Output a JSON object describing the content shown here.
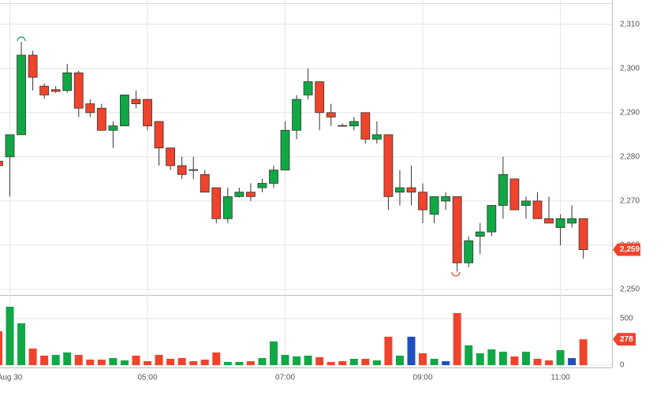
{
  "chart_data": [
    {
      "type": "candlestick",
      "x": [
        0,
        1,
        2,
        3,
        4,
        5,
        6,
        7,
        8,
        9,
        10,
        11,
        12,
        13,
        14,
        15,
        16,
        17,
        18,
        19,
        20,
        21,
        22,
        23,
        24,
        25,
        26,
        27,
        28,
        29,
        30,
        31,
        32,
        33,
        34,
        35,
        36,
        37,
        38,
        39,
        40,
        41,
        42,
        43,
        44,
        45,
        46,
        47,
        48,
        49,
        50,
        51
      ],
      "open": [
        2279,
        2280,
        2285,
        2303,
        2296,
        2295.2,
        2295,
        2299,
        2292,
        2291,
        2286,
        2287,
        2293,
        2293,
        2288,
        2282,
        2278,
        2277.1,
        2276,
        2273,
        2266,
        2271,
        2272,
        2273,
        2274,
        2277,
        2286,
        2294,
        2297,
        2290,
        2287.1,
        2287,
        2290,
        2284,
        2285,
        2272,
        2273,
        2272,
        2267,
        2270,
        2271,
        2256,
        2262,
        2263,
        2269,
        2275,
        2269,
        2270,
        2266,
        2264,
        2265,
        2266
      ],
      "high": [
        2279.2,
        2285,
        2306,
        2304,
        2296.6,
        2296,
        2301,
        2299.5,
        2293,
        2292,
        2288,
        2294,
        2295,
        2293,
        2288,
        2282,
        2280,
        2280,
        2277,
        2273,
        2273,
        2273,
        2274,
        2275,
        2278,
        2288,
        2294,
        2300,
        2297,
        2292,
        2287.5,
        2289,
        2290,
        2288,
        2285,
        2277,
        2278,
        2274,
        2271,
        2272,
        2271,
        2262,
        2265,
        2269,
        2280,
        2275,
        2271,
        2272,
        2271,
        2267,
        2269,
        2266
      ],
      "low": [
        2277.8,
        2271,
        2285,
        2295,
        2293.2,
        2294.5,
        2294.5,
        2289,
        2289,
        2286,
        2282,
        2287,
        2291,
        2286,
        2278,
        2277,
        2275,
        2275,
        2272,
        2265,
        2265,
        2270.8,
        2270,
        2272,
        2273,
        2277,
        2284,
        2293,
        2286,
        2287,
        2286.8,
        2286,
        2283,
        2283,
        2268,
        2269,
        2269,
        2265,
        2265,
        2268,
        2254,
        2255,
        2258,
        2262,
        2266,
        2268,
        2266,
        2266,
        2265,
        2260,
        2264,
        2257
      ],
      "close": [
        2278,
        2285,
        2303,
        2298,
        2294,
        2294.8,
        2299,
        2291,
        2290,
        2286,
        2287,
        2294,
        2292,
        2287,
        2282,
        2278,
        2276,
        2277,
        2272,
        2266,
        2271,
        2272,
        2271,
        2274,
        2277,
        2286,
        2293,
        2297,
        2290,
        2289,
        2287,
        2288,
        2284,
        2285,
        2271,
        2273,
        2272,
        2268,
        2271,
        2271,
        2256,
        2261,
        2263,
        2269,
        2276,
        2268,
        2270,
        2266,
        2265,
        2266,
        2266,
        2259
      ],
      "up_color": "#10a844",
      "down_color": "#f0432c",
      "close_label": "2,259",
      "xlim": [
        0.14,
        53.5
      ],
      "ylim": [
        2249.1,
        2314.6
      ],
      "yticks": [
        {
          "value": 2250,
          "label": "2,250"
        },
        {
          "value": 2260,
          "label": "2,260"
        },
        {
          "value": 2270,
          "label": "2,270"
        },
        {
          "value": 2280,
          "label": "2,280"
        },
        {
          "value": 2290,
          "label": "2,290"
        },
        {
          "value": 2300,
          "label": "2,300"
        },
        {
          "value": 2310,
          "label": "2,310"
        }
      ],
      "grid": true
    },
    {
      "type": "bar",
      "x": [
        0,
        1,
        2,
        3,
        4,
        5,
        6,
        7,
        8,
        9,
        10,
        11,
        12,
        13,
        14,
        15,
        16,
        17,
        18,
        19,
        20,
        21,
        22,
        23,
        24,
        25,
        26,
        27,
        28,
        29,
        30,
        31,
        32,
        33,
        34,
        35,
        36,
        37,
        38,
        39,
        40,
        41,
        42,
        43,
        44,
        45,
        46,
        47,
        48,
        49,
        50,
        51
      ],
      "values": [
        364,
        627,
        449,
        178,
        102,
        110,
        136,
        110,
        59,
        59,
        76,
        51,
        102,
        42,
        110,
        68,
        76,
        42,
        59,
        136,
        34,
        34,
        42,
        76,
        254,
        110,
        93,
        102,
        85,
        34,
        42,
        68,
        68,
        51,
        305,
        102,
        305,
        127,
        68,
        42,
        559,
        212,
        127,
        169,
        144,
        93,
        144,
        68,
        51,
        161,
        76,
        278
      ],
      "colors": [
        "#f0432c",
        "#10a844",
        "#10a844",
        "#f0432c",
        "#f0432c",
        "#10a844",
        "#10a844",
        "#f0432c",
        "#f0432c",
        "#f0432c",
        "#10a844",
        "#10a844",
        "#f0432c",
        "#f0432c",
        "#f0432c",
        "#f0432c",
        "#f0432c",
        "#f0432c",
        "#f0432c",
        "#f0432c",
        "#10a844",
        "#10a844",
        "#f0432c",
        "#10a844",
        "#10a844",
        "#10a844",
        "#10a844",
        "#10a844",
        "#f0432c",
        "#f0432c",
        "#f0432c",
        "#10a844",
        "#f0432c",
        "#10a844",
        "#f0432c",
        "#10a844",
        "#1f4fbf",
        "#f0432c",
        "#10a844",
        "#1f4fbf",
        "#f0432c",
        "#10a844",
        "#10a844",
        "#10a844",
        "#10a844",
        "#f0432c",
        "#10a844",
        "#f0432c",
        "#f0432c",
        "#10a844",
        "#1f4fbf",
        "#f0432c"
      ],
      "xlim": [
        0.14,
        53.5
      ],
      "ylim": [
        -25,
        737
      ],
      "yticks": [
        0,
        500
      ],
      "xticks": [
        {
          "value": 1,
          "label": "Aug 30"
        },
        {
          "value": 13,
          "label": "05:00"
        },
        {
          "value": 25,
          "label": "07:00"
        },
        {
          "value": 37,
          "label": "09:00"
        },
        {
          "value": 49,
          "label": "11:00"
        }
      ],
      "grid": true
    }
  ]
}
